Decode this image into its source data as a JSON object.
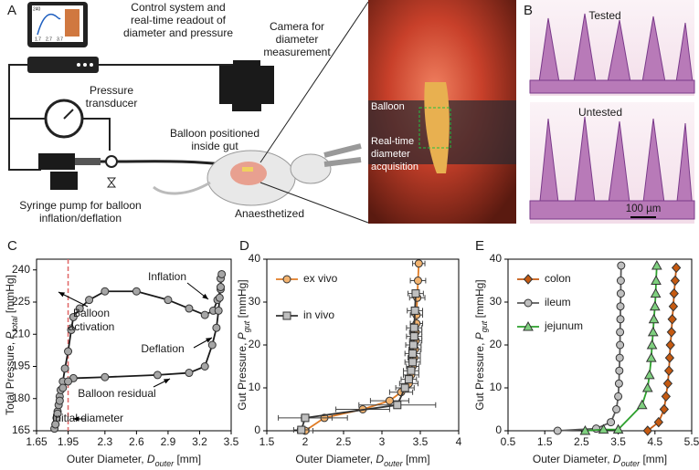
{
  "figure": {
    "panels": [
      "A",
      "B",
      "C",
      "D",
      "E"
    ],
    "schematic": {
      "control": [
        "Control system and",
        "real-time readout of",
        "diameter and pressure"
      ],
      "screen_labels": [
        "240",
        "1.7",
        "2.7",
        "3.7"
      ],
      "camera": [
        "Camera for",
        "diameter",
        "measurement"
      ],
      "transducer": [
        "Pressure",
        "transducer"
      ],
      "balloon_position": [
        "Balloon positioned",
        "inside gut"
      ],
      "pump": [
        "Syringe pump for balloon",
        "inflation/deflation"
      ],
      "anaesthetized": "Anaesthetized",
      "photo_balloon": "Balloon",
      "photo_acquisition": [
        "Real-time",
        "diameter",
        "acquisition"
      ]
    },
    "histology": {
      "tested": "Tested",
      "untested": "Untested",
      "scale": "100 µm"
    }
  },
  "chart_data": [
    {
      "type": "line",
      "xlabel": [
        "Outer Diameter, ",
        "D",
        "outer",
        " [mm]"
      ],
      "ylabel": [
        "Total Pressure, ",
        "P",
        "total",
        " [mmHg]"
      ],
      "xlim": [
        1.65,
        3.5
      ],
      "ylim": [
        165,
        245
      ],
      "xticks": [
        1.65,
        1.95,
        2.3,
        2.6,
        2.9,
        3.2,
        3.5
      ],
      "yticks": [
        165,
        180,
        195,
        210,
        225,
        240
      ],
      "vline": 1.95,
      "vline_color": "#e06666",
      "annotations": [
        [
          "Inflation"
        ],
        [
          "Balloon",
          "activation"
        ],
        [
          "Deflation"
        ],
        [
          "Balloon residual"
        ],
        [
          "Initial diameter"
        ]
      ],
      "series": [
        {
          "color": "#1a1a1a",
          "marker": "circle",
          "marker_color": "#a6a6a6",
          "x": [
            1.82,
            1.83,
            1.84,
            1.85,
            1.86,
            1.87,
            1.88,
            1.9,
            1.92,
            1.95,
            1.98,
            2.0,
            2.06,
            2.15,
            2.3,
            2.6,
            2.9,
            3.1,
            3.25,
            3.33,
            3.37,
            3.4,
            3.4,
            3.41,
            3.4,
            3.39,
            3.38,
            3.36,
            3.32,
            3.25,
            3.1,
            2.8,
            2.3,
            2.0,
            1.95,
            1.9,
            1.87,
            1.85,
            1.83
          ],
          "y": [
            166,
            168,
            171,
            174,
            177,
            181,
            184,
            188,
            194,
            202,
            212,
            218,
            222,
            226,
            230,
            230,
            226,
            222,
            219,
            221,
            226,
            231,
            236,
            238,
            232,
            227,
            221,
            213,
            205,
            195,
            192,
            191,
            190,
            189.5,
            188,
            185,
            179,
            173,
            168
          ]
        }
      ]
    },
    {
      "type": "line",
      "xlabel": [
        "Outer Diameter, ",
        "D",
        "outer",
        " [mm]"
      ],
      "ylabel": [
        "Gut Pressure, ",
        "P",
        "gut",
        " [mmHg]"
      ],
      "xlim": [
        1.5,
        4
      ],
      "ylim": [
        0,
        40
      ],
      "xticks": [
        1.5,
        2,
        2.5,
        3,
        3.5,
        4
      ],
      "yticks": [
        0,
        10,
        20,
        30,
        40
      ],
      "legend": "upper left",
      "series": [
        {
          "name": "ex vivo",
          "color": "#e07b24",
          "marker": "circle",
          "marker_color": "#f2b36f",
          "x": [
            2.0,
            2.25,
            2.75,
            3.1,
            3.25,
            3.35,
            3.38,
            3.4,
            3.42,
            3.43,
            3.44,
            3.44,
            3.45,
            3.45,
            3.46,
            3.47,
            3.48
          ],
          "y": [
            0,
            3,
            5,
            7,
            9,
            11,
            13,
            15,
            17,
            19,
            21,
            23,
            25,
            27,
            31,
            35,
            39
          ],
          "xerr": [
            0.1,
            0.3,
            0.35,
            0.25,
            0.15,
            0.12,
            0.1,
            0.08,
            0.08,
            0.08,
            0.08,
            0.08,
            0.08,
            0.08,
            0.1,
            0.1,
            0.08
          ]
        },
        {
          "name": "in vivo",
          "color": "#333333",
          "marker": "square",
          "marker_color": "#bfbfbf",
          "x": [
            1.95,
            2.0,
            3.2,
            3.3,
            3.35,
            3.38,
            3.4,
            3.4,
            3.41,
            3.42,
            3.42,
            3.43,
            3.44
          ],
          "y": [
            0.2,
            3,
            6,
            10,
            12,
            14,
            16,
            18,
            20,
            22,
            24,
            28,
            32
          ],
          "xerr": [
            0.1,
            0.35,
            0.5,
            0.12,
            0.1,
            0.1,
            0.1,
            0.1,
            0.1,
            0.1,
            0.1,
            0.1,
            0.1
          ]
        }
      ]
    },
    {
      "type": "line",
      "xlabel": [
        "Outer Diameter, ",
        "D",
        "outer",
        " [mm]"
      ],
      "ylabel": [
        "Gut Pressure, ",
        "P",
        "gut",
        " [mmHg]"
      ],
      "xlim": [
        0.5,
        5.5
      ],
      "ylim": [
        0,
        40
      ],
      "xticks": [
        0.5,
        1.5,
        2.5,
        3.5,
        4.5,
        5.5
      ],
      "yticks": [
        0,
        10,
        20,
        30,
        40
      ],
      "legend": "upper left",
      "series": [
        {
          "name": "colon",
          "color": "#c55a11",
          "marker": "diamond",
          "marker_color": "#c55a11",
          "x": [
            4.3,
            4.6,
            4.75,
            4.8,
            4.85,
            4.88,
            4.9,
            4.92,
            4.95,
            4.97,
            5.0,
            5.02,
            5.05,
            5.08
          ],
          "y": [
            0,
            2,
            5,
            8,
            11,
            14,
            17,
            20,
            23,
            26,
            29,
            32,
            35,
            38
          ]
        },
        {
          "name": "ileum",
          "color": "#595959",
          "marker": "circle",
          "marker_color": "#bfbfbf",
          "x": [
            1.85,
            2.9,
            3.3,
            3.45,
            3.5,
            3.52,
            3.53,
            3.54,
            3.55,
            3.55,
            3.56,
            3.56,
            3.57,
            3.57,
            3.58
          ],
          "y": [
            0,
            0.5,
            2,
            5,
            8,
            11,
            14,
            17,
            20,
            23,
            26,
            29,
            32,
            35,
            38.5
          ]
        },
        {
          "name": "jejunum",
          "color": "#2ca02c",
          "marker": "triangle",
          "marker_color": "#7fd07f",
          "x": [
            2.6,
            3.1,
            3.5,
            4.15,
            4.3,
            4.35,
            4.4,
            4.42,
            4.45,
            4.47,
            4.5,
            4.52,
            4.53,
            4.55
          ],
          "y": [
            0,
            0.3,
            0.3,
            6,
            10,
            13,
            17,
            20,
            23,
            26,
            29,
            32,
            35,
            38.5
          ]
        }
      ]
    }
  ]
}
